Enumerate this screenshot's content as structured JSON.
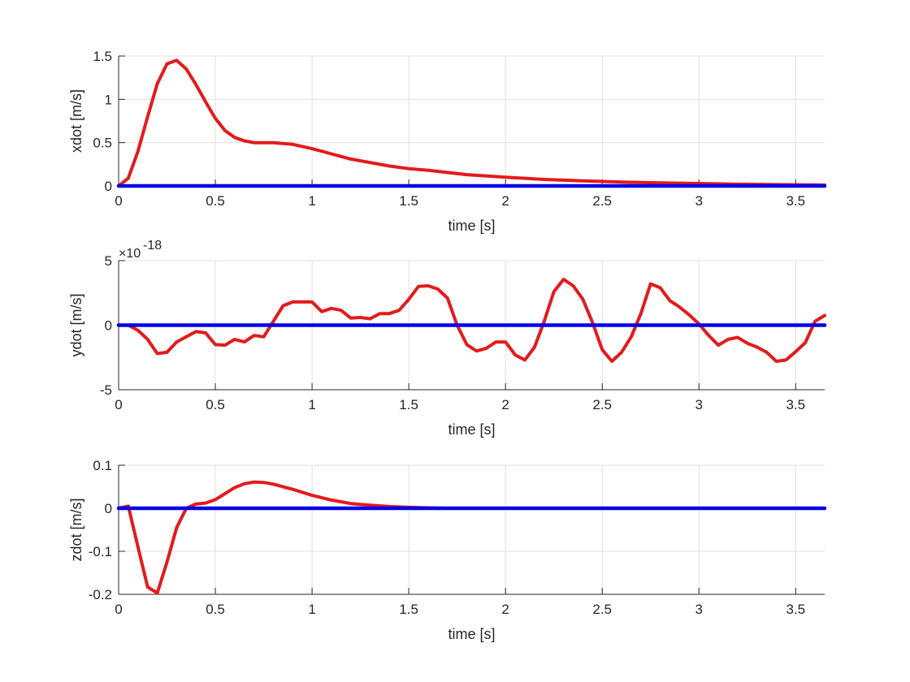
{
  "colors": {
    "background": "#ffffff",
    "axes": "#262626",
    "grid": "#e0e0e0",
    "series_response": "#e41a1c",
    "series_reference": "#0000e6"
  },
  "chart_data": [
    {
      "type": "line",
      "xlabel": "time [s]",
      "ylabel": "xdot [m/s]",
      "xlim": [
        0,
        3.65
      ],
      "ylim": [
        0,
        1.5
      ],
      "grid": true,
      "xticks": [
        0,
        0.5,
        1,
        1.5,
        2,
        2.5,
        3,
        3.5
      ],
      "xtick_labels": [
        "0",
        "0.5",
        "1",
        "1.5",
        "2",
        "2.5",
        "3",
        "3.5"
      ],
      "yticks": [
        0,
        0.5,
        1,
        1.5
      ],
      "ytick_labels": [
        "0",
        "0.5",
        "1",
        "1.5"
      ],
      "exponent_label": "",
      "series": [
        {
          "color": "#e41a1c",
          "x": [
            0,
            0.05,
            0.1,
            0.15,
            0.2,
            0.25,
            0.3,
            0.35,
            0.4,
            0.45,
            0.5,
            0.55,
            0.6,
            0.65,
            0.7,
            0.8,
            0.9,
            1.0,
            1.1,
            1.2,
            1.3,
            1.4,
            1.5,
            1.6,
            1.8,
            2.0,
            2.2,
            2.4,
            2.6,
            2.8,
            3.0,
            3.2,
            3.4,
            3.65
          ],
          "y": [
            0,
            0.09,
            0.4,
            0.8,
            1.18,
            1.41,
            1.45,
            1.35,
            1.17,
            0.97,
            0.78,
            0.64,
            0.56,
            0.52,
            0.5,
            0.5,
            0.48,
            0.43,
            0.37,
            0.31,
            0.27,
            0.23,
            0.2,
            0.18,
            0.13,
            0.1,
            0.075,
            0.058,
            0.045,
            0.035,
            0.028,
            0.02,
            0.015,
            0.01
          ]
        },
        {
          "color": "#0000e6",
          "x": [
            0,
            3.65
          ],
          "y": [
            0,
            0
          ]
        }
      ]
    },
    {
      "type": "line",
      "xlabel": "time [s]",
      "ylabel": "ydot [m/s]",
      "xlim": [
        0,
        3.65
      ],
      "ylim": [
        -5,
        5
      ],
      "grid": true,
      "xticks": [
        0,
        0.5,
        1,
        1.5,
        2,
        2.5,
        3,
        3.5
      ],
      "xtick_labels": [
        "0",
        "0.5",
        "1",
        "1.5",
        "2",
        "2.5",
        "3",
        "3.5"
      ],
      "yticks": [
        -5,
        0,
        5
      ],
      "ytick_labels": [
        "-5",
        "0",
        "5"
      ],
      "exponent_label": "×10",
      "exponent_power": "-18",
      "series": [
        {
          "color": "#e41a1c",
          "x": [
            0,
            0.05,
            0.1,
            0.15,
            0.2,
            0.25,
            0.3,
            0.35,
            0.4,
            0.45,
            0.5,
            0.55,
            0.6,
            0.65,
            0.7,
            0.75,
            0.8,
            0.85,
            0.9,
            0.95,
            1.0,
            1.05,
            1.1,
            1.15,
            1.2,
            1.25,
            1.3,
            1.35,
            1.4,
            1.45,
            1.5,
            1.55,
            1.6,
            1.65,
            1.7,
            1.75,
            1.8,
            1.85,
            1.9,
            1.95,
            2.0,
            2.05,
            2.1,
            2.15,
            2.2,
            2.25,
            2.3,
            2.35,
            2.4,
            2.45,
            2.5,
            2.55,
            2.6,
            2.65,
            2.7,
            2.75,
            2.8,
            2.85,
            2.9,
            2.95,
            3.0,
            3.05,
            3.1,
            3.15,
            3.2,
            3.25,
            3.3,
            3.35,
            3.4,
            3.45,
            3.5,
            3.55,
            3.6,
            3.65
          ],
          "y": [
            0,
            0,
            -0.4,
            -1.1,
            -2.2,
            -2.1,
            -1.3,
            -0.9,
            -0.5,
            -0.6,
            -1.5,
            -1.55,
            -1.1,
            -1.3,
            -0.8,
            -0.9,
            0.3,
            1.5,
            1.8,
            1.8,
            1.8,
            1.05,
            1.3,
            1.15,
            0.55,
            0.6,
            0.5,
            0.9,
            0.9,
            1.15,
            2.0,
            3.0,
            3.05,
            2.8,
            2.1,
            0,
            -1.5,
            -2.0,
            -1.8,
            -1.3,
            -1.3,
            -2.3,
            -2.7,
            -1.7,
            0.3,
            2.6,
            3.55,
            3.05,
            2.0,
            0.2,
            -1.9,
            -2.8,
            -2.1,
            -0.9,
            0.9,
            3.2,
            2.9,
            1.9,
            1.4,
            0.8,
            0.1,
            -0.8,
            -1.55,
            -1.1,
            -0.95,
            -1.4,
            -1.7,
            -2.1,
            -2.8,
            -2.7,
            -2.05,
            -1.35,
            0.3,
            0.75
          ]
        },
        {
          "color": "#0000e6",
          "x": [
            0,
            3.65
          ],
          "y": [
            0,
            0
          ]
        }
      ]
    },
    {
      "type": "line",
      "xlabel": "time [s]",
      "ylabel": "zdot [m/s]",
      "xlim": [
        0,
        3.65
      ],
      "ylim": [
        -0.2,
        0.1
      ],
      "grid": true,
      "xticks": [
        0,
        0.5,
        1,
        1.5,
        2,
        2.5,
        3,
        3.5
      ],
      "xtick_labels": [
        "0",
        "0.5",
        "1",
        "1.5",
        "2",
        "2.5",
        "3",
        "3.5"
      ],
      "yticks": [
        -0.2,
        -0.1,
        0,
        0.1
      ],
      "ytick_labels": [
        "-0.2",
        "-0.1",
        "0",
        "0.1"
      ],
      "exponent_label": "",
      "series": [
        {
          "color": "#e41a1c",
          "x": [
            0,
            0.05,
            0.1,
            0.15,
            0.2,
            0.25,
            0.3,
            0.35,
            0.4,
            0.45,
            0.5,
            0.55,
            0.6,
            0.65,
            0.7,
            0.75,
            0.8,
            0.9,
            1.0,
            1.1,
            1.2,
            1.3,
            1.4,
            1.5,
            1.6,
            1.7,
            1.8,
            2.0,
            2.5,
            3.0,
            3.65
          ],
          "y": [
            0,
            0.005,
            -0.09,
            -0.183,
            -0.197,
            -0.125,
            -0.045,
            0,
            0.01,
            0.012,
            0.02,
            0.034,
            0.048,
            0.057,
            0.061,
            0.06,
            0.056,
            0.044,
            0.03,
            0.019,
            0.011,
            0.007,
            0.004,
            0.002,
            0.001,
            0,
            0,
            0,
            0,
            0,
            0
          ]
        },
        {
          "color": "#0000e6",
          "x": [
            0,
            3.65
          ],
          "y": [
            0,
            0
          ]
        }
      ]
    }
  ]
}
